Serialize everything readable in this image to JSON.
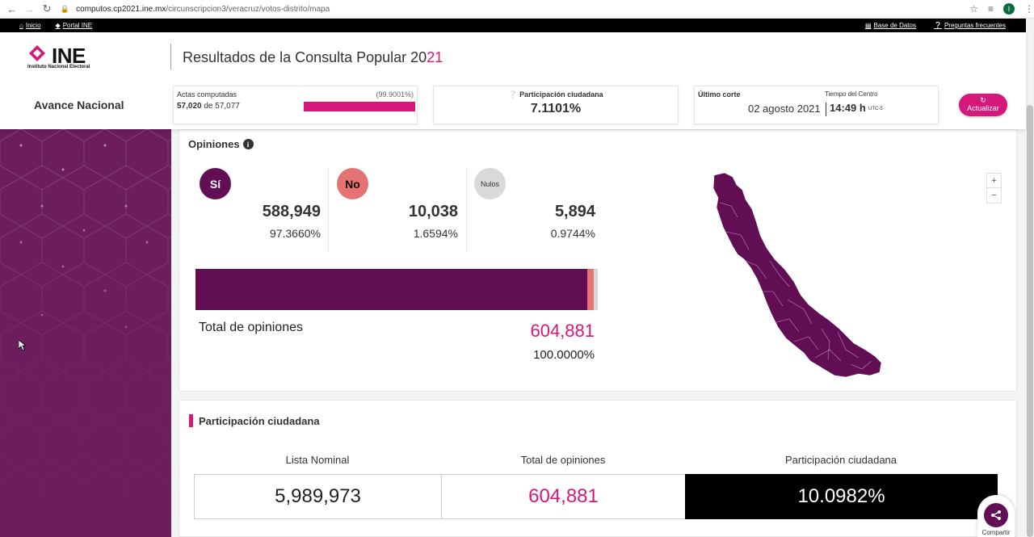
{
  "browser": {
    "url_host": "computos.cp2021.ine.mx",
    "url_path": "/circunscripcion3/veracruz/votos-distrito/mapa",
    "profile_initial": "I"
  },
  "topbar": {
    "inicio": "Inicio",
    "portal": "Portal INE",
    "base_datos": "Base de Datos",
    "preguntas": "Preguntas frecuentes"
  },
  "header": {
    "logo_word": "INE",
    "logo_sub": "Instituto Nacional Electoral",
    "title_main": "Resultados de la Consulta Popular 20",
    "title_highlight": "21",
    "avance": "Avance Nacional",
    "actas": {
      "label": "Actas computadas",
      "percent_text": "(99.9001%)",
      "computed": "57,020",
      "of": "de",
      "total": "57,077",
      "progress": 0.999
    },
    "participacion": {
      "label": "Participación ciudadana",
      "value": "7.1101%"
    },
    "corte": {
      "label": "Último corte",
      "tiempo_label": "Tiempo del Centro",
      "date": "02 agosto 2021",
      "time": "14:49 h",
      "tz": "UTC-5"
    },
    "actualizar": "Actualizar"
  },
  "opiniones": {
    "title": "Opiniones",
    "options": [
      {
        "label": "Sí",
        "count": "588,949",
        "percent": "97.3660%",
        "color": "#610e55",
        "share": 97.366
      },
      {
        "label": "No",
        "count": "10,038",
        "percent": "1.6594%",
        "color": "#e57373",
        "share": 1.6594
      },
      {
        "label": "Nulos",
        "count": "5,894",
        "percent": "0.9744%",
        "color": "#d9d9d9",
        "share": 0.9744
      }
    ],
    "total_label": "Total de opiniones",
    "total_value": "604,881",
    "total_percent": "100.0000%",
    "zoom_in": "+",
    "zoom_out": "−"
  },
  "participacion_panel": {
    "title": "Participación ciudadana",
    "headers": [
      "Lista Nominal",
      "Total de opiniones",
      "Participación ciudadana"
    ],
    "values": [
      "5,989,973",
      "604,881",
      "10.0982%"
    ]
  },
  "share": {
    "label": "Compartir"
  },
  "colors": {
    "accent": "#d5197a",
    "brand_purple": "#610e55",
    "sidebar": "#6b1d5c"
  }
}
